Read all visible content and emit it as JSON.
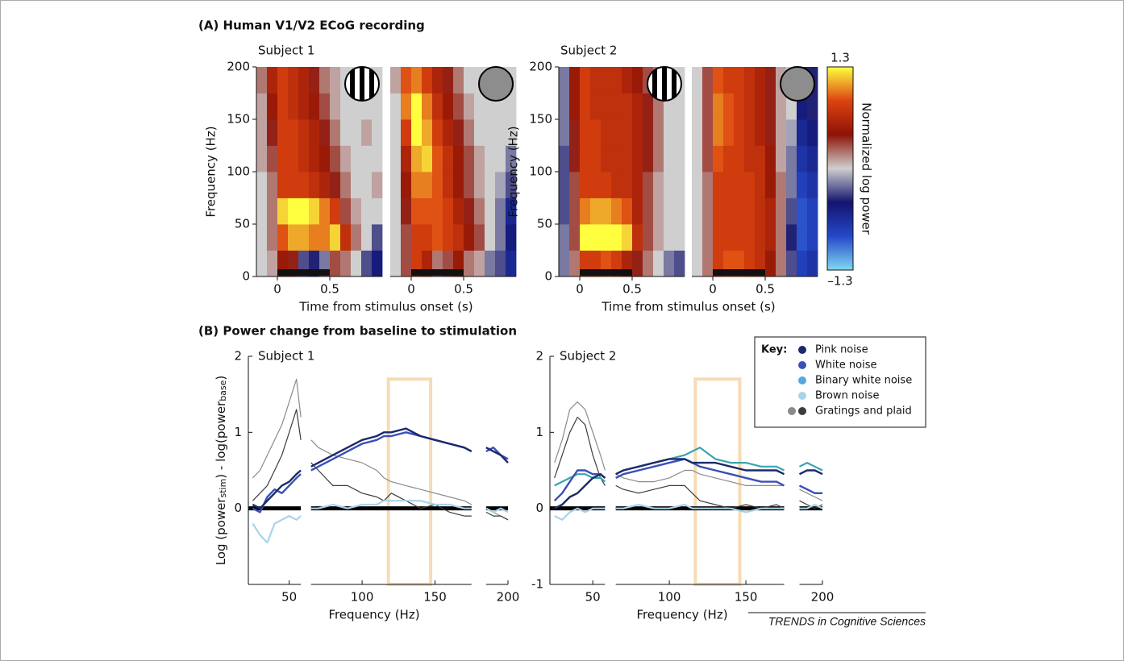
{
  "titles": {
    "a": "(A) Human V1/V2 ECoG recording",
    "b": "(B) Power change from baseline to stimulation"
  },
  "chart_data": [
    {
      "type": "heatmap",
      "subtitle": "Subject 1",
      "xlabel": "Time from stimulus onset (s)",
      "ylabel": "Frequency (Hz)",
      "stimulus_icon": "grating",
      "xlim": [
        -0.2,
        1.0
      ],
      "ylim": [
        0,
        200
      ],
      "xticks": [
        0,
        0.5
      ],
      "yticks": [
        0,
        50,
        100,
        150,
        200
      ],
      "stimulus": [
        0,
        0.5
      ],
      "t": [
        -0.15,
        -0.05,
        0.05,
        0.15,
        0.25,
        0.35,
        0.45,
        0.55,
        0.65,
        0.75,
        0.85,
        0.95
      ],
      "f": [
        12.5,
        37.5,
        62.5,
        87.5,
        112.5,
        137.5,
        162.5,
        187.5
      ],
      "values": [
        [
          0,
          0.1,
          0.5,
          0.4,
          -0.3,
          -0.4,
          -0.2,
          0.3,
          0.2,
          0,
          -0.3,
          -0.5
        ],
        [
          0,
          0.2,
          0.9,
          1.1,
          1.1,
          1.0,
          1.0,
          1.2,
          0.7,
          0.2,
          0,
          -0.3
        ],
        [
          0,
          0.2,
          1.2,
          1.3,
          1.3,
          1.2,
          1.0,
          0.8,
          0.3,
          0.1,
          0,
          0
        ],
        [
          0,
          0.2,
          0.8,
          0.8,
          0.8,
          0.7,
          0.6,
          0.4,
          0.2,
          0,
          0,
          0.1
        ],
        [
          0.1,
          0.3,
          0.8,
          0.8,
          0.7,
          0.6,
          0.5,
          0.3,
          0.1,
          0,
          0,
          0
        ],
        [
          0.1,
          0.4,
          0.8,
          0.8,
          0.7,
          0.6,
          0.4,
          0.2,
          0,
          0,
          0.1,
          0
        ],
        [
          0.1,
          0.5,
          0.8,
          0.7,
          0.6,
          0.5,
          0.3,
          0.1,
          0,
          0,
          0,
          0
        ],
        [
          0.2,
          0.6,
          0.8,
          0.7,
          0.6,
          0.4,
          0.2,
          0.1,
          0,
          0,
          0,
          0
        ]
      ]
    },
    {
      "type": "heatmap",
      "stimulus_icon": "noise",
      "xlim": [
        -0.2,
        1.0
      ],
      "ylim": [
        0,
        200
      ],
      "xticks": [
        0,
        0.5
      ],
      "stimulus": [
        0,
        0.5
      ],
      "t": [
        -0.15,
        -0.05,
        0.05,
        0.15,
        0.25,
        0.35,
        0.45,
        0.55,
        0.65,
        0.75,
        0.85,
        0.95
      ],
      "f": [
        12.5,
        37.5,
        62.5,
        87.5,
        112.5,
        137.5,
        162.5,
        187.5
      ],
      "values": [
        [
          0,
          0.3,
          0.8,
          0.6,
          0.2,
          0.3,
          0.5,
          0.2,
          0.1,
          -0.2,
          -0.3,
          -0.6
        ],
        [
          0,
          0.3,
          0.8,
          0.8,
          0.9,
          0.8,
          0.7,
          0.5,
          0.3,
          0,
          -0.2,
          -0.5
        ],
        [
          0,
          0.4,
          0.9,
          0.9,
          0.9,
          0.8,
          0.6,
          0.4,
          0.2,
          0,
          -0.2,
          -0.6
        ],
        [
          0,
          0.5,
          1.0,
          1.0,
          0.9,
          0.7,
          0.5,
          0.3,
          0.1,
          0,
          -0.1,
          -0.3
        ],
        [
          0,
          0.6,
          1.1,
          1.2,
          0.9,
          0.7,
          0.5,
          0.3,
          0.1,
          0,
          0,
          -0.2
        ],
        [
          0,
          0.8,
          1.3,
          1.1,
          0.8,
          0.6,
          0.4,
          0.2,
          0,
          0,
          0,
          0
        ],
        [
          0,
          1.0,
          1.3,
          1.0,
          0.7,
          0.5,
          0.3,
          0.1,
          0,
          0,
          0,
          0
        ],
        [
          0.1,
          0.9,
          1.0,
          0.8,
          0.6,
          0.4,
          0.2,
          0,
          0,
          0,
          0,
          0
        ]
      ]
    },
    {
      "type": "heatmap",
      "subtitle": "Subject 2",
      "xlabel": "Time from stimulus onset (s)",
      "ylabel": "Frequency (Hz)",
      "stimulus_icon": "grating",
      "xlim": [
        -0.2,
        1.0
      ],
      "ylim": [
        0,
        200
      ],
      "xticks": [
        0,
        0.5
      ],
      "yticks": [
        0,
        50,
        100,
        150,
        200
      ],
      "stimulus": [
        0,
        0.5
      ],
      "t": [
        -0.15,
        -0.05,
        0.05,
        0.15,
        0.25,
        0.35,
        0.45,
        0.55,
        0.65,
        0.75,
        0.85,
        0.95
      ],
      "f": [
        12.5,
        37.5,
        62.5,
        87.5,
        112.5,
        137.5,
        162.5,
        187.5
      ],
      "values": [
        [
          -0.2,
          0.2,
          0.8,
          0.8,
          0.9,
          0.8,
          0.6,
          0.4,
          0.2,
          0,
          -0.2,
          -0.3
        ],
        [
          -0.2,
          0.3,
          1.3,
          1.3,
          1.3,
          1.3,
          1.2,
          0.7,
          0.3,
          0.1,
          0,
          0
        ],
        [
          -0.3,
          0.3,
          1.0,
          1.1,
          1.1,
          1.0,
          0.9,
          0.6,
          0.3,
          0.1,
          0,
          0
        ],
        [
          -0.3,
          0.3,
          0.8,
          0.8,
          0.8,
          0.7,
          0.7,
          0.6,
          0.3,
          0.1,
          0,
          0
        ],
        [
          -0.3,
          0.4,
          0.8,
          0.8,
          0.7,
          0.7,
          0.7,
          0.6,
          0.4,
          0.2,
          0,
          0
        ],
        [
          -0.2,
          0.4,
          0.8,
          0.8,
          0.7,
          0.7,
          0.7,
          0.6,
          0.4,
          0.2,
          0,
          0
        ],
        [
          -0.2,
          0.5,
          0.8,
          0.7,
          0.7,
          0.7,
          0.7,
          0.6,
          0.4,
          0.2,
          0,
          0
        ],
        [
          -0.2,
          0.5,
          0.8,
          0.7,
          0.7,
          0.7,
          0.6,
          0.5,
          0.3,
          0.2,
          0,
          0
        ]
      ]
    },
    {
      "type": "heatmap",
      "stimulus_icon": "noise",
      "xlim": [
        -0.2,
        1.0
      ],
      "ylim": [
        0,
        200
      ],
      "xticks": [
        0,
        0.5
      ],
      "stimulus": [
        0,
        0.5
      ],
      "t": [
        -0.15,
        -0.05,
        0.05,
        0.15,
        0.25,
        0.35,
        0.45,
        0.55,
        0.65,
        0.75,
        0.85,
        0.95
      ],
      "f": [
        12.5,
        37.5,
        62.5,
        87.5,
        112.5,
        137.5,
        162.5,
        187.5
      ],
      "values": [
        [
          0,
          0.2,
          0.8,
          0.9,
          0.9,
          0.8,
          0.7,
          0.5,
          0.2,
          -0.3,
          -0.8,
          -0.7
        ],
        [
          0,
          0.2,
          0.8,
          0.8,
          0.8,
          0.8,
          0.7,
          0.6,
          0.2,
          -0.4,
          -0.9,
          -0.8
        ],
        [
          0,
          0.2,
          0.8,
          0.8,
          0.8,
          0.8,
          0.7,
          0.6,
          0.2,
          -0.3,
          -0.9,
          -0.8
        ],
        [
          0,
          0.2,
          0.8,
          0.8,
          0.8,
          0.8,
          0.7,
          0.5,
          0.2,
          -0.2,
          -0.8,
          -0.7
        ],
        [
          0,
          0.3,
          0.9,
          0.8,
          0.8,
          0.7,
          0.7,
          0.5,
          0.1,
          -0.2,
          -0.7,
          -0.6
        ],
        [
          0,
          0.3,
          1.0,
          0.9,
          0.8,
          0.7,
          0.6,
          0.4,
          0.1,
          -0.1,
          -0.6,
          -0.5
        ],
        [
          0,
          0.3,
          1.0,
          0.9,
          0.8,
          0.7,
          0.6,
          0.4,
          0.1,
          0,
          -0.5,
          -0.4
        ],
        [
          0,
          0.3,
          0.9,
          0.8,
          0.8,
          0.7,
          0.6,
          0.4,
          0.1,
          0,
          -0.4,
          -0.4
        ]
      ]
    },
    {
      "type": "line",
      "subtitle": "Subject 1",
      "xlabel": "Frequency (Hz)",
      "ylabel": [
        "Log (power",
        "stim",
        ") - log(power",
        "base",
        ")"
      ],
      "xlim": [
        22,
        200
      ],
      "ylim": [
        -1,
        2
      ],
      "xticks": [
        50,
        100,
        150,
        200
      ],
      "yticks": [
        0,
        1,
        2
      ],
      "zero_line": 0,
      "highlight": {
        "x": [
          118,
          147
        ],
        "y": [
          -1,
          1.7
        ],
        "color": "#f6dcb4"
      },
      "x": [
        25,
        30,
        35,
        40,
        45,
        50,
        55,
        58,
        60,
        65,
        70,
        80,
        90,
        100,
        110,
        115,
        120,
        130,
        140,
        150,
        160,
        170,
        175,
        180,
        185,
        190,
        195,
        200
      ],
      "series": [
        {
          "color": "#8a8a8a",
          "width": 1.2,
          "values": [
            0.4,
            0.5,
            0.7,
            0.9,
            1.1,
            1.4,
            1.7,
            1.2,
            null,
            0.9,
            0.8,
            0.7,
            0.65,
            0.6,
            0.5,
            0.4,
            0.35,
            0.3,
            0.25,
            0.2,
            0.15,
            0.1,
            0.05,
            null,
            0.0,
            -0.05,
            -0.1,
            -0.15
          ]
        },
        {
          "color": "#3c3c3c",
          "width": 1.2,
          "values": [
            0.1,
            0.2,
            0.3,
            0.5,
            0.7,
            1.0,
            1.3,
            0.9,
            null,
            0.6,
            0.5,
            0.3,
            0.3,
            0.2,
            0.15,
            0.1,
            0.2,
            0.1,
            0.0,
            0.05,
            -0.05,
            -0.1,
            -0.1,
            null,
            -0.05,
            -0.1,
            -0.1,
            -0.15
          ]
        },
        {
          "color": "#a9d3ea",
          "width": 2.2,
          "values": [
            -0.2,
            -0.35,
            -0.45,
            -0.2,
            -0.15,
            -0.1,
            -0.15,
            -0.1,
            null,
            0.0,
            0.0,
            0.05,
            0.0,
            0.05,
            0.05,
            0.1,
            0.1,
            0.1,
            0.1,
            0.05,
            0.05,
            0.0,
            0.0,
            null,
            0.0,
            -0.05,
            0.0,
            -0.05
          ]
        },
        {
          "color": "#3b4fb8",
          "width": 2.4,
          "values": [
            0.0,
            -0.05,
            0.15,
            0.25,
            0.2,
            0.3,
            0.4,
            0.45,
            null,
            0.5,
            0.55,
            0.65,
            0.75,
            0.85,
            0.9,
            0.95,
            0.95,
            1.0,
            0.95,
            0.9,
            0.85,
            0.8,
            0.75,
            null,
            0.75,
            0.8,
            0.7,
            0.65
          ]
        },
        {
          "color": "#1b2a6b",
          "width": 2.4,
          "values": [
            0.05,
            0.0,
            0.1,
            0.2,
            0.3,
            0.35,
            0.45,
            0.5,
            null,
            0.55,
            0.6,
            0.7,
            0.8,
            0.9,
            0.95,
            1.0,
            1.0,
            1.05,
            0.95,
            0.9,
            0.85,
            0.8,
            0.75,
            null,
            0.8,
            0.75,
            0.7,
            0.6
          ]
        }
      ]
    },
    {
      "type": "line",
      "subtitle": "Subject 2",
      "xlabel": "Frequency (Hz)",
      "xlim": [
        22,
        200
      ],
      "ylim": [
        -1,
        2
      ],
      "xticks": [
        50,
        100,
        150,
        200
      ],
      "yticks": [
        -1,
        0,
        1,
        2
      ],
      "zero_line": 0,
      "highlight": {
        "x": [
          117,
          146
        ],
        "y": [
          -1,
          1.7
        ],
        "color": "#f6dcb4"
      },
      "x": [
        25,
        30,
        35,
        40,
        45,
        50,
        55,
        58,
        60,
        65,
        70,
        80,
        90,
        100,
        110,
        115,
        120,
        130,
        140,
        150,
        160,
        170,
        175,
        180,
        185,
        190,
        195,
        200
      ],
      "series": [
        {
          "color": "#8a8a8a",
          "width": 1.2,
          "values": [
            0.6,
            0.9,
            1.3,
            1.4,
            1.3,
            1.0,
            0.7,
            0.5,
            null,
            0.45,
            0.4,
            0.35,
            0.35,
            0.4,
            0.5,
            0.5,
            0.45,
            0.4,
            0.35,
            0.3,
            0.3,
            0.3,
            0.3,
            null,
            0.25,
            0.2,
            0.15,
            0.1
          ]
        },
        {
          "color": "#3c3c3c",
          "width": 1.2,
          "values": [
            0.4,
            0.7,
            1.0,
            1.2,
            1.1,
            0.7,
            0.4,
            0.3,
            null,
            0.3,
            0.25,
            0.2,
            0.25,
            0.3,
            0.3,
            0.2,
            0.1,
            0.05,
            0.0,
            0.05,
            0.0,
            0.05,
            0.0,
            null,
            0.1,
            0.05,
            0.0,
            0.05
          ]
        },
        {
          "color": "#a9d3ea",
          "width": 2.2,
          "values": [
            -0.1,
            -0.15,
            -0.05,
            0.0,
            -0.05,
            0.0,
            0.0,
            0.0,
            null,
            0.0,
            0.0,
            0.05,
            0.0,
            0.0,
            0.05,
            0.0,
            0.0,
            0.0,
            0.0,
            -0.05,
            0.0,
            0.0,
            0.0,
            null,
            0.0,
            0.0,
            0.05,
            0.0
          ]
        },
        {
          "color": "#3aa3b0",
          "width": 2.2,
          "values": [
            0.3,
            0.35,
            0.4,
            0.45,
            0.45,
            0.4,
            0.4,
            0.35,
            null,
            0.45,
            0.5,
            0.55,
            0.6,
            0.65,
            0.7,
            0.75,
            0.8,
            0.65,
            0.6,
            0.6,
            0.55,
            0.55,
            0.5,
            null,
            0.55,
            0.6,
            0.55,
            0.5
          ]
        },
        {
          "color": "#3b4fb8",
          "width": 2.4,
          "values": [
            0.1,
            0.2,
            0.35,
            0.5,
            0.5,
            0.45,
            0.45,
            0.4,
            null,
            0.4,
            0.45,
            0.5,
            0.55,
            0.6,
            0.65,
            0.6,
            0.55,
            0.5,
            0.45,
            0.4,
            0.35,
            0.35,
            0.3,
            null,
            0.3,
            0.25,
            0.2,
            0.2
          ]
        },
        {
          "color": "#1b2a6b",
          "width": 2.4,
          "values": [
            0.0,
            0.05,
            0.15,
            0.2,
            0.3,
            0.4,
            0.45,
            0.4,
            null,
            0.45,
            0.5,
            0.55,
            0.6,
            0.65,
            0.65,
            0.6,
            0.6,
            0.6,
            0.55,
            0.5,
            0.5,
            0.5,
            0.45,
            null,
            0.45,
            0.5,
            0.5,
            0.45
          ]
        }
      ]
    }
  ],
  "colorbar": {
    "label": "Normalized log power",
    "lim": [
      -1.3,
      1.3
    ],
    "ticks": [
      1.3,
      {
        "value": -1.3,
        "label": "–1.3"
      }
    ],
    "colormap": [
      "#80d8f2",
      "#2448c8",
      "#14146e",
      "#cfcfcf",
      "#8e1206",
      "#dc4410",
      "#ffff40"
    ]
  },
  "legend": {
    "title": "Key:",
    "entries": [
      {
        "name": "Pink noise",
        "colors": [
          "#1b2a6b"
        ]
      },
      {
        "name": "White noise",
        "colors": [
          "#3b4fb8"
        ]
      },
      {
        "name": "Binary white noise",
        "colors": [
          "#55a8e0"
        ]
      },
      {
        "name": "Brown noise",
        "colors": [
          "#a9d3ea"
        ]
      },
      {
        "name": "Gratings and plaid",
        "colors": [
          "#8a8a8a",
          "#3c3c3c"
        ]
      }
    ]
  },
  "footer": "TRENDS in Cognitive Sciences"
}
